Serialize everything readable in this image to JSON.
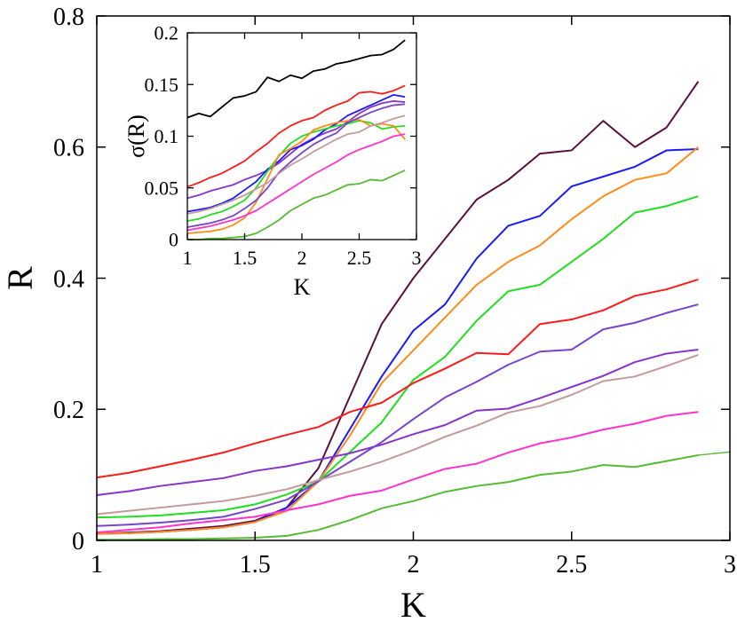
{
  "chart_data": [
    {
      "type": "line",
      "title": "",
      "xlabel": "K",
      "ylabel": "R",
      "xlim": [
        1,
        3
      ],
      "ylim": [
        0,
        0.8
      ],
      "x_ticks": [
        1,
        1.5,
        2,
        2.5,
        3
      ],
      "x_tick_labels": [
        "1",
        "1.5",
        "2",
        "2.5",
        "3"
      ],
      "y_ticks": [
        0,
        0.2,
        0.4,
        0.6,
        0.8
      ],
      "y_tick_labels": [
        "0",
        "0.2",
        "0.4",
        "0.6",
        "0.8"
      ],
      "grid": false,
      "legend": "none",
      "x": [
        1.0,
        1.1,
        1.2,
        1.3,
        1.4,
        1.5,
        1.6,
        1.7,
        1.8,
        1.9,
        2.0,
        2.1,
        2.2,
        2.3,
        2.4,
        2.5,
        2.6,
        2.7,
        2.8,
        2.9
      ],
      "series": [
        {
          "color": "#5a1040",
          "values": [
            0.01,
            0.012,
            0.014,
            0.018,
            0.022,
            0.03,
            0.05,
            0.11,
            0.22,
            0.33,
            0.4,
            0.46,
            0.52,
            0.55,
            0.59,
            0.595,
            0.64,
            0.6,
            0.63,
            0.7
          ]
        },
        {
          "color": "#1a1aff",
          "values": [
            0.01,
            0.011,
            0.013,
            0.016,
            0.02,
            0.028,
            0.05,
            0.09,
            0.17,
            0.25,
            0.32,
            0.36,
            0.43,
            0.48,
            0.495,
            0.54,
            0.555,
            0.57,
            0.595,
            0.597
          ]
        },
        {
          "color": "#ff8c1a",
          "values": [
            0.01,
            0.011,
            0.013,
            0.016,
            0.02,
            0.028,
            0.045,
            0.09,
            0.16,
            0.24,
            0.29,
            0.34,
            0.39,
            0.425,
            0.45,
            0.49,
            0.525,
            0.55,
            0.56,
            0.6
          ]
        },
        {
          "color": "#22dd22",
          "values": [
            0.035,
            0.036,
            0.038,
            0.042,
            0.046,
            0.055,
            0.07,
            0.09,
            0.135,
            0.18,
            0.245,
            0.28,
            0.335,
            0.38,
            0.39,
            0.425,
            0.46,
            0.5,
            0.51,
            0.525
          ]
        },
        {
          "color": "#ff1a1a",
          "values": [
            0.096,
            0.103,
            0.113,
            0.123,
            0.134,
            0.148,
            0.161,
            0.173,
            0.196,
            0.21,
            0.24,
            0.262,
            0.286,
            0.284,
            0.33,
            0.337,
            0.351,
            0.373,
            0.383,
            0.398
          ]
        },
        {
          "color": "#8833cc",
          "values": [
            0.069,
            0.075,
            0.083,
            0.089,
            0.095,
            0.106,
            0.113,
            0.123,
            0.133,
            0.146,
            0.162,
            0.176,
            0.198,
            0.201,
            0.217,
            0.234,
            0.251,
            0.272,
            0.285,
            0.291
          ]
        },
        {
          "color": "#7744cc",
          "values": [
            0.022,
            0.024,
            0.027,
            0.031,
            0.036,
            0.048,
            0.062,
            0.09,
            0.12,
            0.15,
            0.185,
            0.218,
            0.242,
            0.268,
            0.288,
            0.291,
            0.322,
            0.332,
            0.347,
            0.36
          ]
        },
        {
          "color": "#c49a9a",
          "values": [
            0.04,
            0.045,
            0.05,
            0.055,
            0.06,
            0.068,
            0.078,
            0.092,
            0.105,
            0.12,
            0.138,
            0.158,
            0.175,
            0.195,
            0.205,
            0.222,
            0.243,
            0.25,
            0.266,
            0.283
          ]
        },
        {
          "color": "#ff33cc",
          "values": [
            0.012,
            0.016,
            0.02,
            0.026,
            0.031,
            0.036,
            0.046,
            0.055,
            0.068,
            0.076,
            0.093,
            0.109,
            0.117,
            0.134,
            0.148,
            0.157,
            0.169,
            0.178,
            0.19,
            0.196
          ]
        },
        {
          "color": "#55bb33",
          "values": [
            0.001,
            0.001,
            0.002,
            0.002,
            0.003,
            0.004,
            0.007,
            0.016,
            0.031,
            0.049,
            0.06,
            0.074,
            0.083,
            0.089,
            0.1,
            0.105,
            0.115,
            0.112,
            0.121,
            0.13
          ]
        }
      ],
      "extra_segment": {
        "color": "#55bb33",
        "x": [
          2.9,
          3.0
        ],
        "values": [
          0.13,
          0.135
        ]
      }
    },
    {
      "type": "line",
      "title": "",
      "xlabel": "K",
      "ylabel": "σ(R)",
      "xlim": [
        1,
        3
      ],
      "ylim": [
        0,
        0.2
      ],
      "x_ticks": [
        1,
        1.5,
        2,
        2.5,
        3
      ],
      "x_tick_labels": [
        "1",
        "1.5",
        "2",
        "2.5",
        "3"
      ],
      "y_ticks": [
        0,
        0.05,
        0.1,
        0.15,
        0.2
      ],
      "y_tick_labels": [
        "0",
        "0.05",
        "0.1",
        "0.15",
        "0.2"
      ],
      "grid": false,
      "legend": "none",
      "x": [
        1.0,
        1.1,
        1.2,
        1.3,
        1.4,
        1.5,
        1.6,
        1.7,
        1.8,
        1.9,
        2.0,
        2.1,
        2.2,
        2.3,
        2.4,
        2.5,
        2.6,
        2.7,
        2.8,
        2.9
      ],
      "series": [
        {
          "color": "#000000",
          "values": [
            0.118,
            0.122,
            0.119,
            0.128,
            0.137,
            0.139,
            0.143,
            0.157,
            0.153,
            0.159,
            0.156,
            0.163,
            0.165,
            0.17,
            0.172,
            0.175,
            0.178,
            0.179,
            0.184,
            0.193
          ]
        },
        {
          "color": "#ff1a1a",
          "values": [
            0.051,
            0.055,
            0.06,
            0.064,
            0.07,
            0.076,
            0.085,
            0.093,
            0.103,
            0.11,
            0.115,
            0.118,
            0.125,
            0.13,
            0.134,
            0.142,
            0.143,
            0.141,
            0.144,
            0.149
          ]
        },
        {
          "color": "#8833cc",
          "values": [
            0.04,
            0.043,
            0.047,
            0.05,
            0.053,
            0.058,
            0.062,
            0.067,
            0.074,
            0.083,
            0.092,
            0.098,
            0.103,
            0.107,
            0.114,
            0.122,
            0.128,
            0.132,
            0.134,
            0.133
          ]
        },
        {
          "color": "#1a1aff",
          "values": [
            0.027,
            0.029,
            0.031,
            0.035,
            0.04,
            0.048,
            0.056,
            0.068,
            0.076,
            0.087,
            0.091,
            0.097,
            0.106,
            0.112,
            0.12,
            0.125,
            0.13,
            0.135,
            0.14,
            0.138
          ]
        },
        {
          "color": "#22dd22",
          "values": [
            0.018,
            0.02,
            0.024,
            0.027,
            0.032,
            0.038,
            0.05,
            0.066,
            0.081,
            0.093,
            0.1,
            0.104,
            0.107,
            0.11,
            0.112,
            0.115,
            0.113,
            0.107,
            0.109,
            0.11
          ]
        },
        {
          "color": "#ff8c1a",
          "values": [
            0.006,
            0.007,
            0.008,
            0.01,
            0.014,
            0.021,
            0.036,
            0.059,
            0.082,
            0.088,
            0.095,
            0.106,
            0.11,
            0.113,
            0.115,
            0.116,
            0.11,
            0.112,
            0.11,
            0.097
          ]
        },
        {
          "color": "#7744cc",
          "values": [
            0.012,
            0.014,
            0.016,
            0.019,
            0.023,
            0.03,
            0.038,
            0.05,
            0.065,
            0.075,
            0.084,
            0.092,
            0.098,
            0.103,
            0.113,
            0.118,
            0.123,
            0.127,
            0.13,
            0.131
          ]
        },
        {
          "color": "#c49a9a",
          "values": [
            0.025,
            0.027,
            0.03,
            0.034,
            0.038,
            0.043,
            0.049,
            0.055,
            0.064,
            0.072,
            0.078,
            0.085,
            0.091,
            0.097,
            0.102,
            0.104,
            0.11,
            0.113,
            0.117,
            0.12
          ]
        },
        {
          "color": "#ff33cc",
          "values": [
            0.009,
            0.011,
            0.013,
            0.016,
            0.019,
            0.023,
            0.028,
            0.035,
            0.042,
            0.049,
            0.056,
            0.063,
            0.069,
            0.075,
            0.082,
            0.087,
            0.091,
            0.095,
            0.1,
            0.102
          ]
        },
        {
          "color": "#55bb33",
          "values": [
            0.0,
            0.0,
            0.001,
            0.001,
            0.002,
            0.003,
            0.006,
            0.012,
            0.019,
            0.028,
            0.034,
            0.04,
            0.043,
            0.048,
            0.053,
            0.054,
            0.058,
            0.057,
            0.062,
            0.067
          ]
        }
      ]
    }
  ]
}
